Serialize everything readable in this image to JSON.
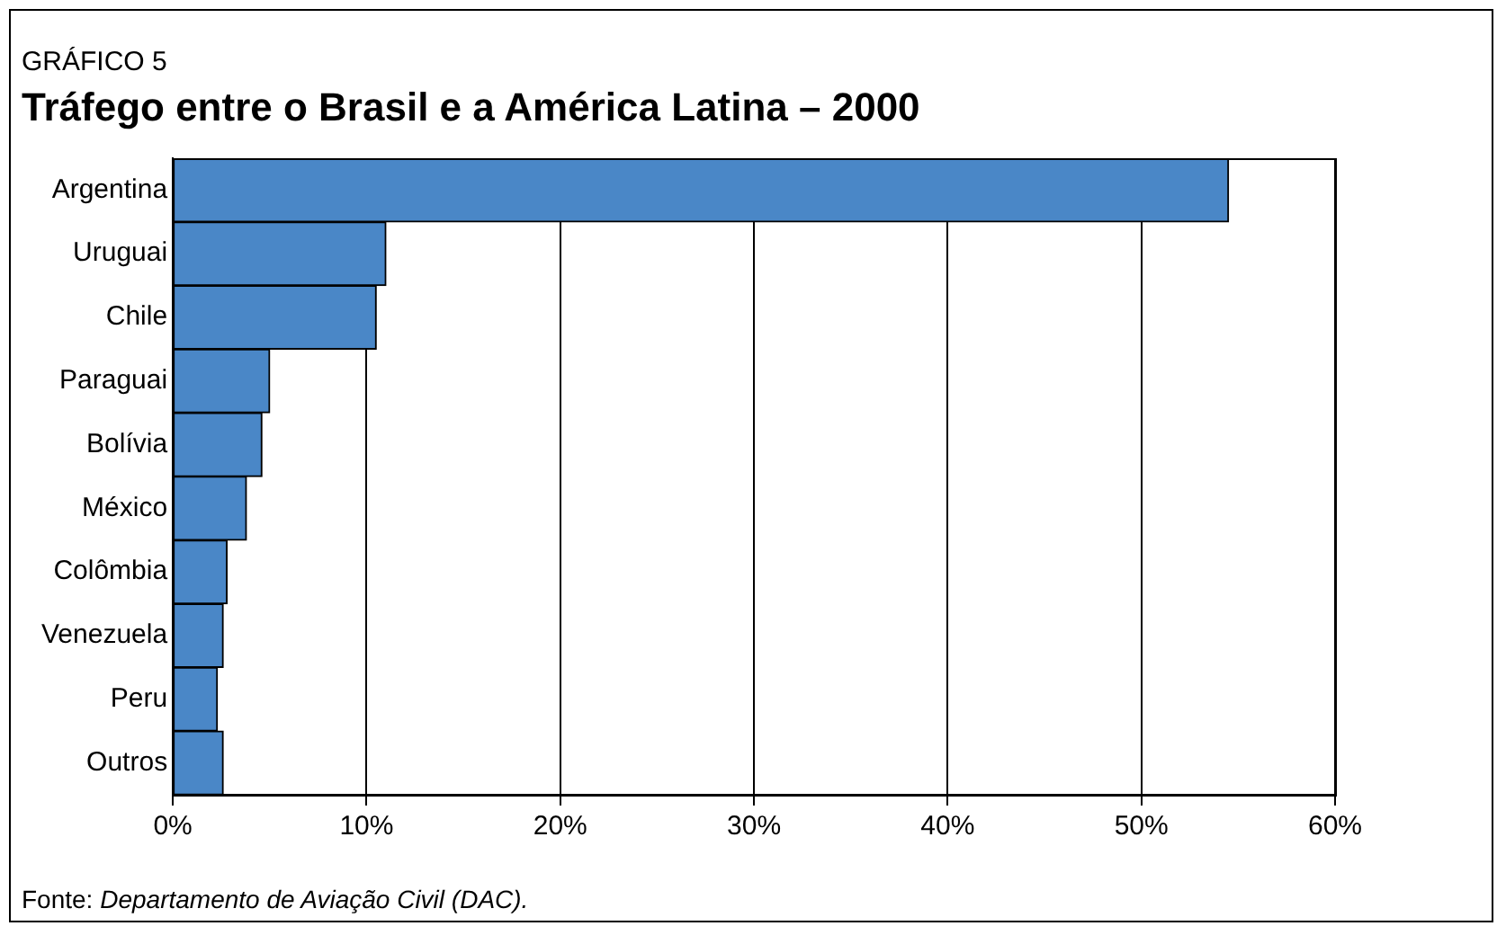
{
  "chart_data": {
    "type": "bar",
    "orientation": "horizontal",
    "subtitle": "GRÁFICO 5",
    "title": "Tráfego entre o Brasil e a América Latina – 2000",
    "categories": [
      "Argentina",
      "Uruguai",
      "Chile",
      "Paraguai",
      "Bolívia",
      "México",
      "Colômbia",
      "Venezuela",
      "Peru",
      "Outros"
    ],
    "values": [
      54.5,
      11.0,
      10.5,
      5.0,
      4.6,
      3.8,
      2.8,
      2.6,
      2.3,
      2.6
    ],
    "color": "#4a87c7",
    "xlim": [
      0,
      60
    ],
    "xticks": [
      {
        "value": 0,
        "label": "0%"
      },
      {
        "value": 10,
        "label": "10%"
      },
      {
        "value": 20,
        "label": "20%"
      },
      {
        "value": 30,
        "label": "30%"
      },
      {
        "value": 40,
        "label": "40%"
      },
      {
        "value": 50,
        "label": "50%"
      },
      {
        "value": 60,
        "label": "60%"
      }
    ],
    "grid": "x",
    "legend": false,
    "annotations": [
      "Fonte: Departamento de Aviação Civil (DAC)."
    ]
  }
}
